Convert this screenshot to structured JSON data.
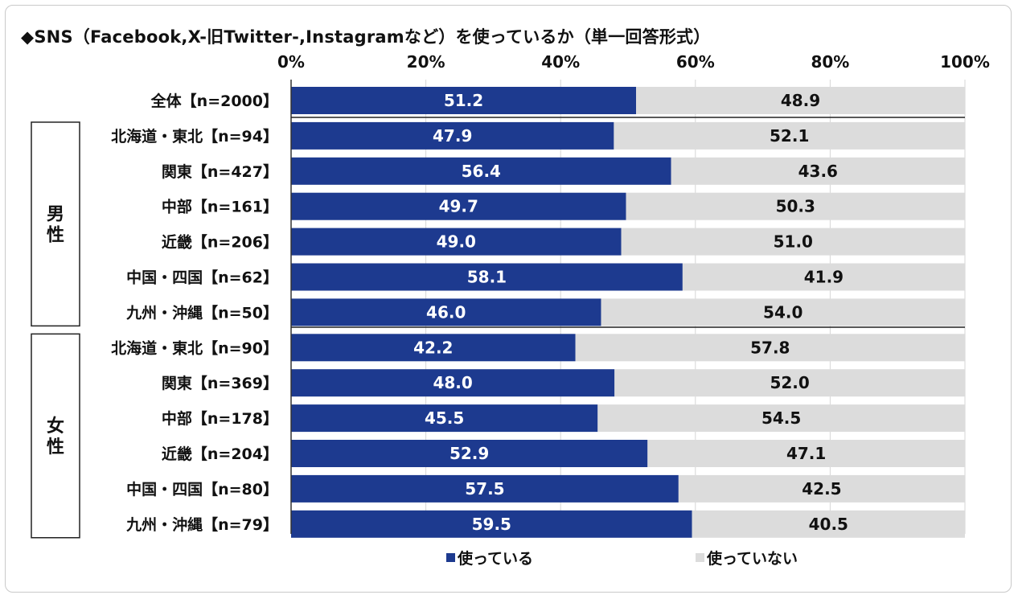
{
  "title": "◆SNS（Facebook,X-旧Twitter-,Instagramなど）を使っているか（単一回答形式）",
  "colors": {
    "used": "#1d3a8f",
    "not_used": "#dcdcdc",
    "axis": "#333333"
  },
  "chart_data": {
    "type": "bar",
    "orientation": "horizontal",
    "stacked": true,
    "title": "◆SNS（Facebook,X-旧Twitter-,Instagramなど）を使っているか（単一回答形式）",
    "xlim": [
      0,
      100
    ],
    "x_ticks": [
      "0%",
      "20%",
      "40%",
      "60%",
      "80%",
      "100%"
    ],
    "grid": true,
    "legend_position": "bottom",
    "groups": [
      {
        "label": "",
        "start": 0,
        "end": 0
      },
      {
        "label": "男性",
        "start": 1,
        "end": 6
      },
      {
        "label": "女性",
        "start": 7,
        "end": 12
      }
    ],
    "categories": [
      "全体【n=2000】",
      "北海道・東北【n=94】",
      "関東【n=427】",
      "中部【n=161】",
      "近畿【n=206】",
      "中国・四国【n=62】",
      "九州・沖縄【n=50】",
      "北海道・東北【n=90】",
      "関東【n=369】",
      "中部【n=178】",
      "近畿【n=204】",
      "中国・四国【n=80】",
      "九州・沖縄【n=79】"
    ],
    "series": [
      {
        "name": "使っている",
        "color": "#1d3a8f",
        "values": [
          51.2,
          47.9,
          56.4,
          49.7,
          49.0,
          58.1,
          46.0,
          42.2,
          48.0,
          45.5,
          52.9,
          57.5,
          59.5
        ],
        "labels": [
          "51.2",
          "47.9",
          "56.4",
          "49.7",
          "49.0",
          "58.1",
          "46.0",
          "42.2",
          "48.0",
          "45.5",
          "52.9",
          "57.5",
          "59.5"
        ]
      },
      {
        "name": "使っていない",
        "color": "#dcdcdc",
        "values": [
          48.9,
          52.1,
          43.6,
          50.3,
          51.0,
          41.9,
          54.0,
          57.8,
          52.0,
          54.5,
          47.1,
          42.5,
          40.5
        ],
        "labels": [
          "48.9",
          "52.1",
          "43.6",
          "50.3",
          "51.0",
          "41.9",
          "54.0",
          "57.8",
          "52.0",
          "54.5",
          "47.1",
          "42.5",
          "40.5"
        ]
      }
    ]
  }
}
